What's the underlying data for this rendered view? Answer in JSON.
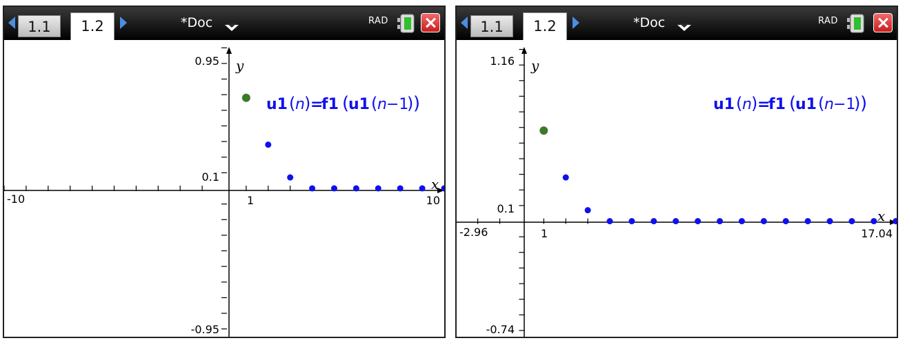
{
  "screens": [
    {
      "tabs": [
        "1.1",
        "1.2"
      ],
      "doc_title": "*Doc",
      "mode": "RAD",
      "graph": {
        "ymax_label": "0.95",
        "ymin_label": "-0.95",
        "ytick_label": "0.1",
        "xmin_label": "-10",
        "xmax_label": "10",
        "xtick_label": "1",
        "x_axis_label": "x",
        "y_axis_label": "y",
        "formula": {
          "u": "u1",
          "n": "n",
          "eq": "=",
          "f": "f1",
          "minus": "−1"
        }
      }
    },
    {
      "tabs": [
        "1.1",
        "1.2"
      ],
      "doc_title": "*Doc",
      "mode": "RAD",
      "graph": {
        "ymax_label": "1.16",
        "ymin_label": "-0.74",
        "ytick_label": "0.1",
        "xmin_label": "-2.96",
        "xmax_label": "17.04",
        "xtick_label": "1",
        "x_axis_label": "x",
        "y_axis_label": "y",
        "formula": {
          "u": "u1",
          "n": "n",
          "eq": "=",
          "f": "f1",
          "minus": "−1"
        }
      }
    }
  ],
  "colors": {
    "first_point": "#3a7a2a",
    "points": "#1010ee",
    "formula": "#1010ee",
    "tab_arrow": "#4a8fe0"
  },
  "chart_data": [
    {
      "type": "scatter",
      "xlim": [
        -10,
        10
      ],
      "ylim": [
        -0.95,
        0.95
      ],
      "points": [
        [
          1,
          0.58
        ],
        [
          2,
          0.28
        ],
        [
          3,
          0.07
        ],
        [
          4,
          0
        ],
        [
          5,
          0
        ],
        [
          6,
          0
        ],
        [
          7,
          0
        ],
        [
          8,
          0
        ],
        [
          9,
          0
        ],
        [
          10,
          0
        ]
      ]
    },
    {
      "type": "scatter",
      "xlim": [
        -2.96,
        17.04
      ],
      "ylim": [
        -0.74,
        1.16
      ],
      "points": [
        [
          1,
          0.58
        ],
        [
          2,
          0.28
        ],
        [
          3,
          0.07
        ],
        [
          4,
          0
        ],
        [
          5,
          0
        ],
        [
          6,
          0
        ],
        [
          7,
          0
        ],
        [
          8,
          0
        ],
        [
          9,
          0
        ],
        [
          10,
          0
        ],
        [
          11,
          0
        ],
        [
          12,
          0
        ],
        [
          13,
          0
        ],
        [
          14,
          0
        ],
        [
          15,
          0
        ],
        [
          16,
          0
        ],
        [
          17,
          0
        ]
      ]
    }
  ]
}
